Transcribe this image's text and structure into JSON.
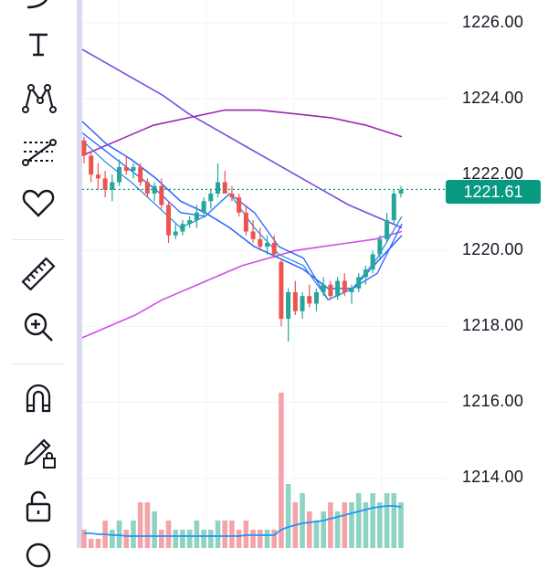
{
  "price_axis": {
    "ticks": [
      "1226.00",
      "1224.00",
      "1222.00",
      "1220.00",
      "1218.00",
      "1216.00",
      "1214.00"
    ],
    "last_price": "1221.61"
  },
  "toolbar": {
    "items": [
      {
        "name": "curve-tool-icon"
      },
      {
        "name": "text-tool-icon"
      },
      {
        "name": "pattern-tool-icon"
      },
      {
        "name": "prediction-tool-icon"
      },
      {
        "name": "favorites-heart-icon"
      },
      {
        "name": "ruler-measure-icon"
      },
      {
        "name": "zoom-in-icon"
      },
      {
        "name": "magnet-icon"
      },
      {
        "name": "lock-drawings-icon"
      },
      {
        "name": "lock-all-icon"
      }
    ]
  },
  "colors": {
    "up": "#26a69a",
    "down": "#ef5350",
    "volume_up": "#8fd3c4",
    "volume_down": "#f4a3a8",
    "ma_purple": "#9c27b0",
    "ma_magenta": "#d04de8",
    "ma_blue": "#2962ff",
    "ma_violet": "#7b4ce0",
    "last_price": "#089981"
  },
  "chart_data": {
    "type": "candlestick",
    "y_range": [
      1212.5,
      1227.3
    ],
    "last_price": 1221.61,
    "candles": [
      [
        1222.9,
        1223.0,
        1222.3,
        1222.5
      ],
      [
        1222.5,
        1222.6,
        1221.8,
        1222.0
      ],
      [
        1222.0,
        1222.3,
        1221.6,
        1221.9
      ],
      [
        1221.9,
        1222.1,
        1221.4,
        1221.6
      ],
      [
        1221.6,
        1222.0,
        1221.3,
        1221.8
      ],
      [
        1221.8,
        1222.4,
        1221.7,
        1222.2
      ],
      [
        1222.2,
        1222.5,
        1222.0,
        1222.1
      ],
      [
        1222.1,
        1222.3,
        1221.9,
        1222.2
      ],
      [
        1222.2,
        1222.3,
        1221.7,
        1221.8
      ],
      [
        1221.8,
        1221.9,
        1221.4,
        1221.5
      ],
      [
        1221.5,
        1221.8,
        1221.3,
        1221.7
      ],
      [
        1221.7,
        1221.9,
        1221.1,
        1221.2
      ],
      [
        1221.2,
        1221.3,
        1220.2,
        1220.4
      ],
      [
        1220.4,
        1220.7,
        1220.3,
        1220.5
      ],
      [
        1220.5,
        1220.8,
        1220.4,
        1220.7
      ],
      [
        1220.7,
        1220.9,
        1220.6,
        1220.8
      ],
      [
        1220.8,
        1221.2,
        1220.6,
        1221.0
      ],
      [
        1221.0,
        1221.4,
        1220.9,
        1221.3
      ],
      [
        1221.3,
        1221.6,
        1221.1,
        1221.5
      ],
      [
        1221.5,
        1222.3,
        1221.4,
        1221.8
      ],
      [
        1221.8,
        1222.1,
        1221.6,
        1221.5
      ],
      [
        1221.5,
        1221.7,
        1221.3,
        1221.4
      ],
      [
        1221.4,
        1221.5,
        1220.9,
        1221.0
      ],
      [
        1221.0,
        1221.2,
        1220.4,
        1220.5
      ],
      [
        1220.5,
        1220.8,
        1220.2,
        1220.3
      ],
      [
        1220.3,
        1220.6,
        1220.0,
        1220.1
      ],
      [
        1220.1,
        1220.4,
        1219.9,
        1220.2
      ],
      [
        1220.2,
        1220.4,
        1219.8,
        1219.9
      ],
      [
        1219.7,
        1219.8,
        1218.0,
        1218.2
      ],
      [
        1218.2,
        1219.0,
        1217.6,
        1218.9
      ],
      [
        1218.9,
        1219.2,
        1218.3,
        1218.4
      ],
      [
        1218.4,
        1218.9,
        1218.2,
        1218.8
      ],
      [
        1218.8,
        1219.1,
        1218.5,
        1218.6
      ],
      [
        1218.6,
        1219.0,
        1218.4,
        1218.9
      ],
      [
        1218.9,
        1219.3,
        1218.8,
        1219.1
      ],
      [
        1219.1,
        1219.2,
        1218.7,
        1218.8
      ],
      [
        1218.8,
        1219.3,
        1218.7,
        1219.2
      ],
      [
        1219.2,
        1219.4,
        1218.8,
        1218.9
      ],
      [
        1218.9,
        1219.1,
        1218.6,
        1219.0
      ],
      [
        1219.0,
        1219.4,
        1218.9,
        1219.3
      ],
      [
        1219.3,
        1219.6,
        1219.1,
        1219.5
      ],
      [
        1219.5,
        1220.0,
        1219.4,
        1219.9
      ],
      [
        1219.9,
        1220.4,
        1219.8,
        1220.3
      ],
      [
        1220.3,
        1221.0,
        1220.2,
        1220.8
      ],
      [
        1220.8,
        1221.6,
        1220.7,
        1221.5
      ],
      [
        1221.5,
        1221.7,
        1221.4,
        1221.6
      ]
    ],
    "volume": [
      2,
      1,
      1,
      3,
      2,
      3,
      2,
      3,
      5,
      5,
      4,
      2,
      3,
      2,
      2,
      2,
      3,
      2,
      2,
      3,
      3,
      3,
      2,
      3,
      2,
      2,
      2,
      2,
      17,
      7,
      5,
      6,
      4,
      3,
      4,
      5,
      4,
      5,
      5,
      6,
      5,
      6,
      5,
      6,
      6,
      5
    ],
    "moving_averages": [
      {
        "values": [
          1225.3,
          1224.9,
          1224.5,
          1224.1,
          1223.6,
          1223.2,
          1222.8,
          1222.4,
          1222.0,
          1221.6,
          1221.2,
          1220.9,
          1220.6
        ]
      },
      {
        "values": [
          1217.7,
          1218.0,
          1218.3,
          1218.7,
          1219.0,
          1219.3,
          1219.6,
          1219.8,
          1220.0,
          1220.1,
          1220.2,
          1220.3,
          1220.5
        ]
      },
      {
        "values": [
          1222.5,
          1222.9,
          1223.3,
          1223.5,
          1223.7,
          1223.7,
          1223.6,
          1223.5,
          1223.3,
          1223.0
        ]
      },
      {
        "values": [
          1223.4,
          1222.8,
          1222.4,
          1221.9,
          1221.3,
          1221.0,
          1220.6,
          1220.1,
          1219.8,
          1219.5,
          1219.0,
          1219.0,
          1219.7,
          1220.4
        ]
      },
      {
        "values": [
          1223.1,
          1222.6,
          1222.1,
          1221.6,
          1221.0,
          1220.9,
          1221.5,
          1221.0,
          1220.1,
          1219.8,
          1218.7,
          1219.0,
          1219.4,
          1220.7
        ]
      },
      {
        "values": [
          1222.9,
          1222.3,
          1221.8,
          1221.2,
          1220.6,
          1220.9,
          1221.5,
          1220.6,
          1219.9,
          1219.6,
          1218.7,
          1219.0,
          1219.8,
          1220.9
        ]
      }
    ]
  }
}
